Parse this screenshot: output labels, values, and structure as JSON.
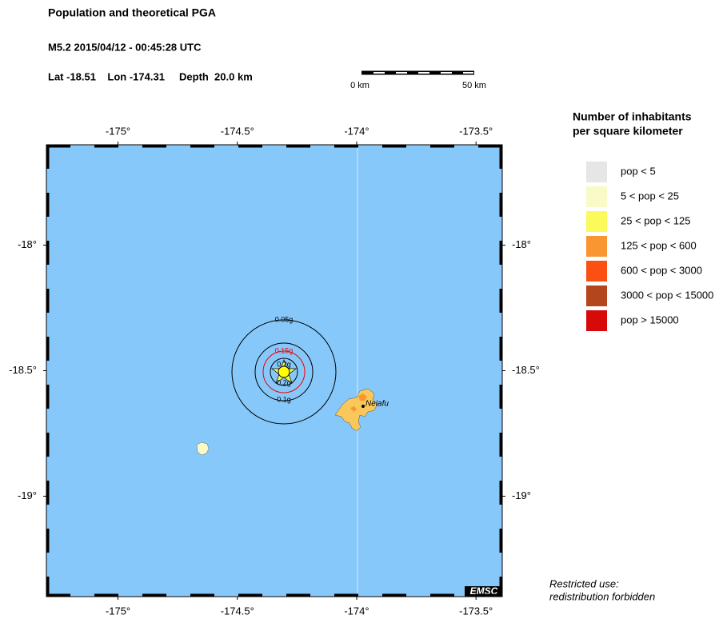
{
  "header": {
    "title": "Population and theoretical PGA",
    "event": "M5.2  2015/04/12 - 00:45:28 UTC",
    "location": "Lat -18.51    Lon -174.31     Depth  20.0 km"
  },
  "scale_bar": {
    "start": "0 km",
    "end": "50 km"
  },
  "map": {
    "lon_range": [
      -175.3,
      -173.39
    ],
    "lat_range": [
      -17.6,
      -19.4
    ],
    "lon_ticks": [
      {
        "value": -175,
        "label": "-175°"
      },
      {
        "value": -174.5,
        "label": "-174.5°"
      },
      {
        "value": -174,
        "label": "-174°"
      },
      {
        "value": -173.5,
        "label": "-173.5°"
      }
    ],
    "lat_ticks": [
      {
        "value": -18,
        "label": "-18°"
      },
      {
        "value": -18.5,
        "label": "-18.5°"
      },
      {
        "value": -19,
        "label": "-19°"
      }
    ],
    "contours": [
      "0.05g",
      "0.15g",
      "0.2g",
      "0.2g",
      "0.1g"
    ],
    "city": "Neiafu",
    "logo": "EMSC"
  },
  "legend": {
    "title": [
      "Number of inhabitants",
      "per square kilometer"
    ],
    "items": [
      {
        "label": "pop < 5",
        "color": "#e6e6e6"
      },
      {
        "label": "5 < pop < 25",
        "color": "#fafac8"
      },
      {
        "label": "25 < pop < 125",
        "color": "#fafa5a"
      },
      {
        "label": "125 < pop < 600",
        "color": "#fa9632"
      },
      {
        "label": "600 < pop < 3000",
        "color": "#fa5014"
      },
      {
        "label": "3000 < pop < 15000",
        "color": "#b4461e"
      },
      {
        "label": "pop > 15000",
        "color": "#d70a0a"
      }
    ]
  },
  "notice": [
    "Restricted use:",
    "redistribution forbidden"
  ]
}
